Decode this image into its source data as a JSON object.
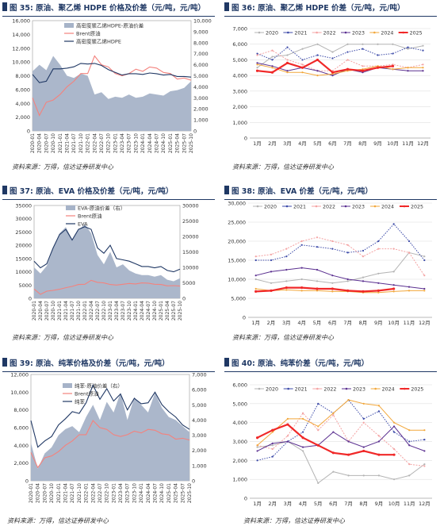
{
  "colors": {
    "title": "#1f3864",
    "spread_area": "#a6b3c8",
    "brent": "#f4827d",
    "product_dark": "#203864",
    "y2020": "#b4b4b4",
    "y2021": "#3c4aa8",
    "y2022": "#f4a3a3",
    "y2023": "#5b3090",
    "y2024": "#f2a73b",
    "y2025": "#f02828"
  },
  "months": [
    "1月",
    "2月",
    "3月",
    "4月",
    "5月",
    "6月",
    "7月",
    "8月",
    "9月",
    "10月",
    "11月",
    "12月"
  ],
  "year_names": [
    "2020",
    "2021",
    "2022",
    "2023",
    "2024",
    "2025"
  ],
  "ts_dates": [
    "2020-01",
    "2020-04",
    "2020-07",
    "2020-10",
    "2021-01",
    "2021-04",
    "2021-07",
    "2021-10",
    "2022-01",
    "2022-04",
    "2022-07",
    "2022-10",
    "2023-01",
    "2023-04",
    "2023-07",
    "2023-10",
    "2024-01",
    "2024-04",
    "2024-07",
    "2024-10",
    "2025-01",
    "2025-04",
    "2025-07",
    "2025-10"
  ],
  "panels": [
    {
      "title": "图 35: 原油、聚乙烯 HDPE 价格及价差（元/吨，元/吨）",
      "source": "资料来源：万得，信达证券研发中心",
      "chart_data": {
        "type": "area",
        "left_axis": {
          "min": 0,
          "max": 16000,
          "ticks": [
            "0",
            "2,000",
            "4,000",
            "6,000",
            "8,000",
            "10,000",
            "12,000",
            "14,000",
            "16,000"
          ]
        },
        "right_axis": {
          "min": 0,
          "max": 10000,
          "ticks": [
            "0",
            "1,000",
            "2,000",
            "3,000",
            "4,000",
            "5,000",
            "6,000",
            "7,000",
            "8,000",
            "9,000",
            "10,000"
          ]
        },
        "legend": [
          "高密度聚乙烯HDPE-原油价差",
          "Brent原油",
          "高密度聚乙烯HDPE"
        ],
        "series": [
          {
            "name": "高密度聚乙烯HDPE-原油价差",
            "axis": "right",
            "style": "area",
            "values": [
              5400,
              6000,
              5500,
              6800,
              6000,
              5000,
              4800,
              5200,
              5000,
              3300,
              3500,
              2900,
              3100,
              3000,
              3300,
              3000,
              3100,
              3400,
              3300,
              3200,
              3600,
              3700,
              3900,
              4500
            ]
          },
          {
            "name": "Brent原油",
            "axis": "right",
            "style": "line",
            "values": [
              3000,
              1400,
              2600,
              2800,
              3300,
              4000,
              4500,
              5200,
              5200,
              6800,
              6000,
              5800,
              5200,
              5000,
              5200,
              5600,
              5400,
              5800,
              5700,
              5300,
              5200,
              4700,
              4800,
              4600
            ]
          },
          {
            "name": "高密度聚乙烯HDPE",
            "axis": "left",
            "style": "line",
            "values": [
              8200,
              7000,
              7200,
              9000,
              9000,
              9100,
              9300,
              9800,
              9700,
              9800,
              9500,
              8900,
              8500,
              8100,
              8300,
              8300,
              8200,
              8400,
              8300,
              8100,
              8200,
              7900,
              7900,
              7800
            ]
          }
        ]
      }
    },
    {
      "title": "图 36: 原油、聚乙烯 HDPE 价差（元/吨，元/吨）",
      "source": "资料来源：万得，信达证券研发中心",
      "chart_data": {
        "type": "line",
        "y_axis": {
          "min": 0,
          "max": 7000,
          "ticks": [
            "0",
            "1,000",
            "2,000",
            "3,000",
            "4,000",
            "5,000",
            "6,000",
            "7,000"
          ]
        },
        "series": [
          {
            "name": "2020",
            "values": [
              4500,
              5200,
              5300,
              5700,
              6000,
              5500,
              6000,
              6000,
              6000,
              6000,
              5700,
              5900
            ]
          },
          {
            "name": "2021",
            "values": [
              5400,
              5000,
              5800,
              5000,
              5300,
              5100,
              5500,
              5700,
              5300,
              5400,
              5800,
              5600
            ]
          },
          {
            "name": "2022",
            "values": [
              5300,
              5600,
              5000,
              4700,
              4300,
              4300,
              5000,
              4600,
              4600,
              4700,
              4500,
              4700
            ]
          },
          {
            "name": "2023",
            "values": [
              4800,
              4600,
              4300,
              4500,
              4300,
              4000,
              4400,
              4200,
              4500,
              4400,
              4300,
              4300
            ]
          },
          {
            "name": "2024",
            "values": [
              4700,
              4500,
              4200,
              4200,
              4000,
              4100,
              4300,
              4400,
              4600,
              4400,
              4500,
              4500
            ]
          },
          {
            "name": "2025",
            "values": [
              4300,
              4200,
              4800,
              4500,
              5000,
              4200,
              4400,
              4300,
              4500,
              4600
            ]
          }
        ]
      }
    },
    {
      "title": "图 37: 原油、EVA 价格及价差（元/吨，元/吨）",
      "source": "资料来源：万得，信达证券研发中心",
      "chart_data": {
        "type": "area",
        "left_axis": {
          "min": 0,
          "max": 35000,
          "ticks": [
            "0",
            "5000",
            "10000",
            "15000",
            "20000",
            "25000",
            "30000",
            "35000"
          ]
        },
        "right_axis": {
          "min": 0,
          "max": 30000,
          "ticks": [
            "0",
            "5000",
            "10000",
            "15000",
            "20000",
            "25000",
            "30000"
          ]
        },
        "legend": [
          "EVA-原油价差（右）",
          "Brent原油",
          "EVA"
        ],
        "series": [
          {
            "name": "EVA-原油价差（右）",
            "axis": "right",
            "style": "area",
            "values": [
              10000,
              8000,
              10500,
              16000,
              21000,
              23000,
              19000,
              22000,
              24000,
              21000,
              14000,
              11000,
              15000,
              10000,
              11000,
              9000,
              8000,
              7500,
              7500,
              7000,
              7500,
              6000,
              5500,
              6500
            ]
          },
          {
            "name": "Brent原油",
            "axis": "left",
            "style": "line",
            "values": [
              3500,
              1500,
              2700,
              3000,
              3400,
              4000,
              4500,
              5200,
              5300,
              6800,
              6000,
              5800,
              5200,
              5000,
              5300,
              5600,
              5400,
              5800,
              5700,
              5300,
              5200,
              4700,
              4800,
              4600
            ]
          },
          {
            "name": "EVA",
            "axis": "left",
            "style": "line",
            "values": [
              14000,
              11500,
              13000,
              19000,
              24000,
              26000,
              22000,
              26000,
              27000,
              26000,
              19000,
              17000,
              20000,
              15000,
              14500,
              14000,
              13000,
              12000,
              12000,
              11500,
              12000,
              10500,
              10000,
              11000
            ]
          }
        ]
      }
    },
    {
      "title": "图 38: 原油、EVA 价差（元/吨，元/吨）",
      "source": "资料来源：万得，信达证券研发中心",
      "chart_data": {
        "type": "line",
        "y_axis": {
          "min": 0,
          "max": 30000,
          "ticks": [
            "0",
            "5,000",
            "10,000",
            "15,000",
            "20,000",
            "25,000",
            "30,000"
          ]
        },
        "series": [
          {
            "name": "2020",
            "values": [
              10000,
              9000,
              9500,
              10000,
              9500,
              9000,
              9500,
              10500,
              11500,
              12000,
              17000,
              16000
            ]
          },
          {
            "name": "2021",
            "values": [
              15000,
              15000,
              16000,
              19000,
              18500,
              18000,
              17000,
              17500,
              20000,
              24500,
              20000,
              15000
            ]
          },
          {
            "name": "2022",
            "values": [
              16000,
              16500,
              18000,
              20000,
              21000,
              20000,
              19000,
              16000,
              18000,
              18000,
              17000,
              11000
            ]
          },
          {
            "name": "2023",
            "values": [
              11000,
              12000,
              12500,
              13000,
              12500,
              11000,
              10000,
              9500,
              9000,
              8500,
              8000,
              7500
            ]
          },
          {
            "name": "2024",
            "values": [
              7500,
              7000,
              7200,
              7000,
              7000,
              6800,
              6800,
              6500,
              6500,
              6800,
              7000,
              7000
            ]
          },
          {
            "name": "2025",
            "values": [
              6800,
              7000,
              7800,
              7800,
              7500,
              7500,
              7000,
              6800,
              7000,
              7500
            ]
          }
        ]
      }
    },
    {
      "title": "图 39: 原油、纯苯价格及价差（元/吨，元/吨）",
      "source": "资料来源：万得，信达证券研发中心",
      "chart_data": {
        "type": "area",
        "left_axis": {
          "min": 0,
          "max": 12000,
          "ticks": [
            "0",
            "2,000",
            "4,000",
            "6,000",
            "8,000",
            "10,000",
            "12,000"
          ]
        },
        "right_axis": {
          "min": 0,
          "max": 7000,
          "ticks": [
            "0",
            "1,000",
            "2,000",
            "3,000",
            "4,000",
            "5,000",
            "6,000",
            "7,000"
          ]
        },
        "legend": [
          "纯苯-原油价差（右）",
          "Brent原油",
          "纯苯"
        ],
        "series": [
          {
            "name": "纯苯-原油价差（右）",
            "axis": "right",
            "style": "area",
            "values": [
              2500,
              800,
              1800,
              2200,
              3000,
              3400,
              3600,
              3200,
              4200,
              5000,
              4000,
              5200,
              4500,
              5800,
              4000,
              5500,
              5000,
              4500,
              5800,
              4800,
              4200,
              4000,
              3600,
              3200
            ]
          },
          {
            "name": "Brent原油",
            "axis": "left",
            "style": "line",
            "values": [
              3200,
              1500,
              2600,
              2800,
              3300,
              4000,
              4500,
              5200,
              5200,
              6800,
              6000,
              5800,
              5200,
              5000,
              5200,
              5600,
              5400,
              5800,
              5700,
              5300,
              5200,
              4700,
              4800,
              4600
            ]
          },
          {
            "name": "纯苯",
            "axis": "left",
            "style": "line",
            "values": [
              6800,
              3800,
              4500,
              5000,
              6300,
              7000,
              7800,
              7600,
              8800,
              10800,
              9200,
              10400,
              9000,
              9800,
              8000,
              9300,
              8700,
              8800,
              10000,
              8600,
              7800,
              7200,
              6300,
              5800
            ]
          }
        ]
      }
    },
    {
      "title": "图 40: 原油、纯苯价差（元/吨，元/吨）",
      "source": "资料来源：万得，信达证券研发中心",
      "chart_data": {
        "type": "line",
        "y_axis": {
          "min": 0,
          "max": 6000,
          "ticks": [
            "0",
            "1,000",
            "2,000",
            "3,000",
            "4,000",
            "5,000",
            "6,000"
          ]
        },
        "series": [
          {
            "name": "2020",
            "values": [
              2700,
              2800,
              3000,
              2500,
              800,
              1400,
              1200,
              1200,
              1200,
              1000,
              1200,
              1800
            ]
          },
          {
            "name": "2021",
            "values": [
              2000,
              2200,
              3000,
              3500,
              5000,
              4500,
              5200,
              4200,
              4600,
              3500,
              3000,
              3100
            ]
          },
          {
            "name": "2022",
            "values": [
              2800,
              2600,
              3300,
              4500,
              3600,
              4400,
              3000,
              4000,
              3300,
              2600,
              1800,
              1700
            ]
          },
          {
            "name": "2023",
            "values": [
              2500,
              2900,
              3000,
              2700,
              2800,
              3500,
              3000,
              2700,
              3000,
              3800,
              2800,
              2500
            ]
          },
          {
            "name": "2024",
            "values": [
              2800,
              3500,
              4200,
              4200,
              3800,
              4500,
              5200,
              5000,
              4900,
              4000,
              3600,
              3600
            ]
          },
          {
            "name": "2025",
            "values": [
              3200,
              3600,
              3900,
              3200,
              2800,
              2400,
              2300,
              2500,
              2300,
              2300
            ]
          }
        ]
      }
    }
  ]
}
